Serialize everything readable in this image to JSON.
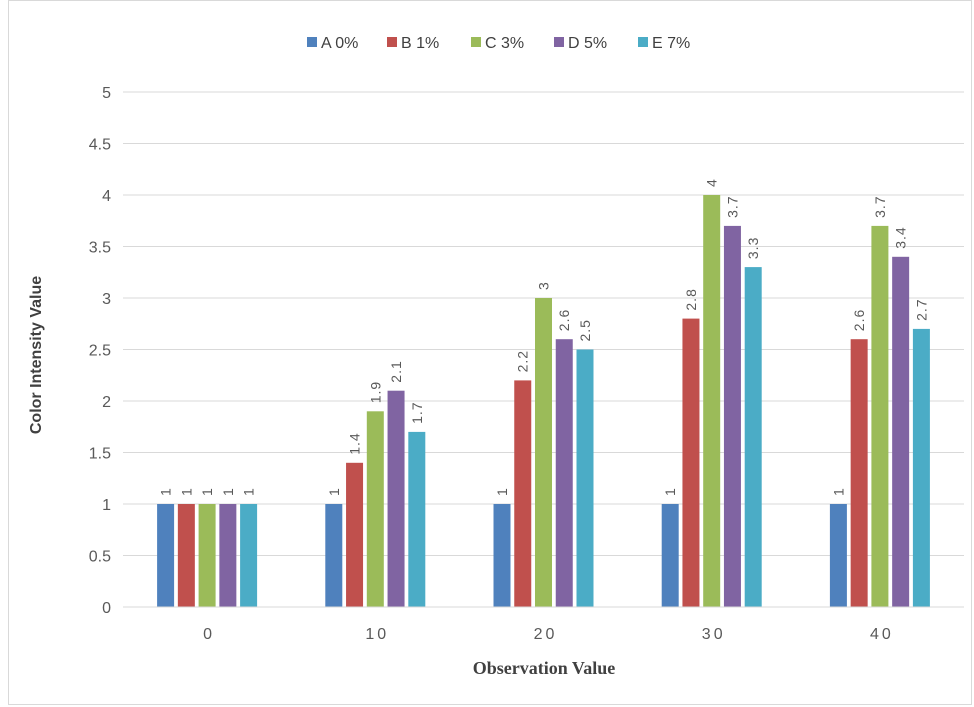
{
  "chart_data": {
    "type": "bar",
    "categories": [
      "0",
      "10",
      "20",
      "30",
      "40"
    ],
    "series": [
      {
        "name": "A 0%",
        "color": "#4f81bd",
        "values": [
          1,
          1,
          1,
          1,
          1
        ]
      },
      {
        "name": "B 1%",
        "color": "#c0504d",
        "values": [
          1,
          1.4,
          2.2,
          2.8,
          2.6
        ]
      },
      {
        "name": "C 3%",
        "color": "#9bbb59",
        "values": [
          1,
          1.9,
          3,
          4,
          3.7
        ]
      },
      {
        "name": "D 5%",
        "color": "#8064a2",
        "values": [
          1,
          2.1,
          2.6,
          3.7,
          3.4
        ]
      },
      {
        "name": "E 7%",
        "color": "#4bacc6",
        "values": [
          1,
          1.7,
          2.5,
          3.3,
          2.7
        ]
      }
    ],
    "xlabel": "Observation Value",
    "ylabel": "Color Intensity Value",
    "ylim": [
      0,
      5
    ],
    "yticks": [
      "0",
      "0.5",
      "1",
      "1.5",
      "2",
      "2.5",
      "3",
      "3.5",
      "4",
      "4.5",
      "5"
    ],
    "grid": true,
    "legend_position": "top",
    "data_labels": true
  }
}
